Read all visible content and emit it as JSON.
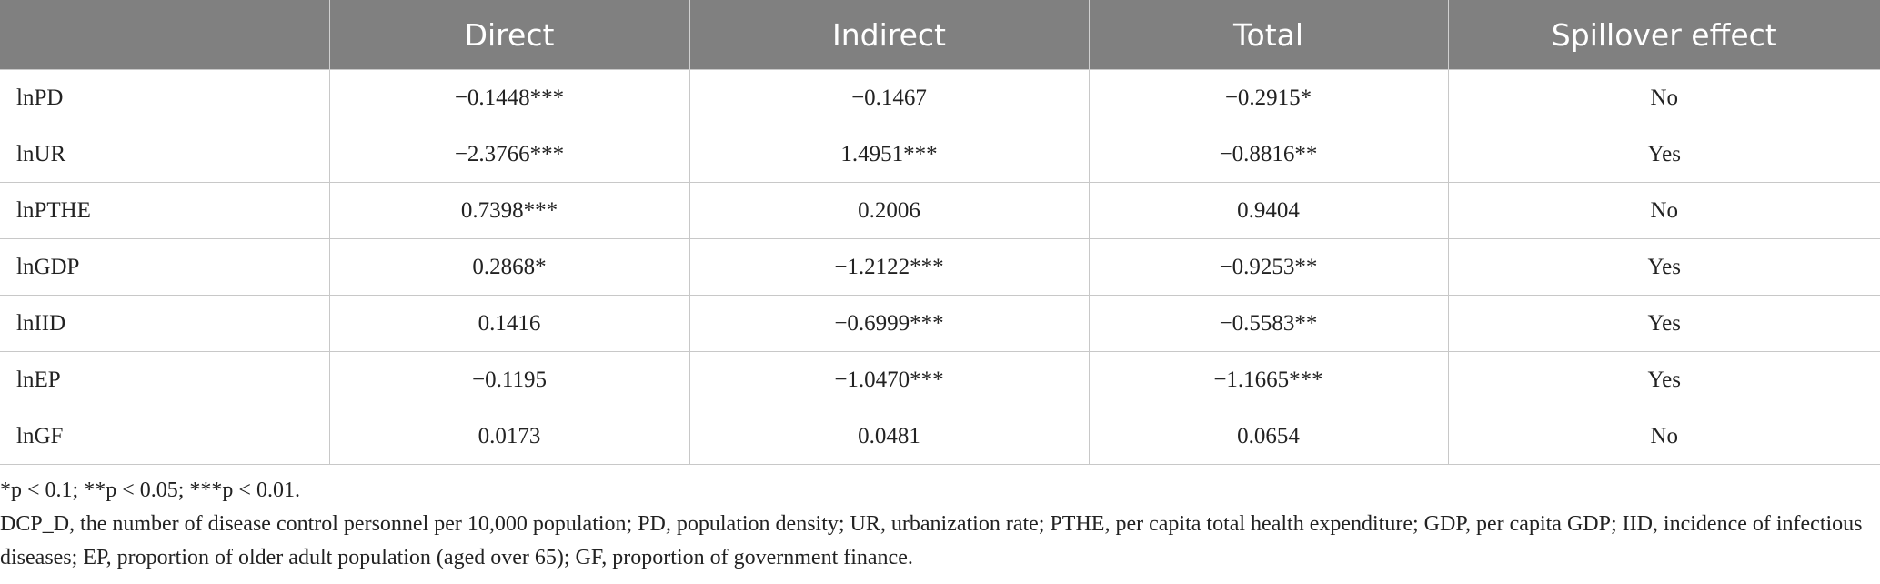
{
  "table": {
    "header": [
      "Direct",
      "Indirect",
      "Total",
      "Spillover effect"
    ],
    "rows": [
      [
        "lnPD",
        "−0.1448***",
        "−0.1467",
        "−0.2915*",
        "No"
      ],
      [
        "lnUR",
        "−2.3766***",
        "1.4951***",
        "−0.8816**",
        "Yes"
      ],
      [
        "lnPTHE",
        "0.7398***",
        "0.2006",
        "0.9404",
        "No"
      ],
      [
        "lnGDP",
        "0.2868*",
        "−1.2122***",
        "−0.9253**",
        "Yes"
      ],
      [
        "lnIID",
        "0.1416",
        "−0.6999***",
        "−0.5583**",
        "Yes"
      ],
      [
        "lnEP",
        "−0.1195",
        "−1.0470***",
        "−1.1665***",
        "Yes"
      ],
      [
        "lnGF",
        "0.0173",
        "0.0481",
        "0.0654",
        "No"
      ]
    ]
  },
  "notes": [
    "*p < 0.1; **p < 0.05; ***p < 0.01.",
    "DCP_D, the number of disease control personnel per 10,000 population; PD, population density; UR, urbanization rate; PTHE, per capita total health expenditure; GDP, per capita GDP; IID, incidence of infectious diseases; EP, proportion of older adult population (aged over 65); GF, proportion of government finance."
  ]
}
